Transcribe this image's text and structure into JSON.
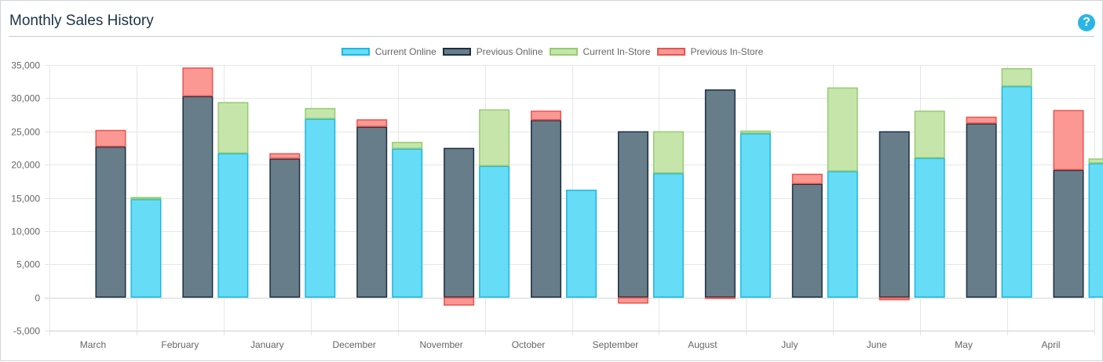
{
  "panel": {
    "title": "Monthly Sales History",
    "help_icon": "question-circle-icon",
    "help_label": "?"
  },
  "chart_data": {
    "type": "bar",
    "stacked": true,
    "categories": [
      "March",
      "February",
      "January",
      "December",
      "November",
      "October",
      "September",
      "August",
      "July",
      "June",
      "May",
      "April"
    ],
    "ylim": [
      -5000,
      35000
    ],
    "yticks": [
      -5000,
      0,
      5000,
      10000,
      15000,
      20000,
      25000,
      30000,
      35000
    ],
    "ytick_labels": [
      "-5,000",
      "0",
      "5,000",
      "10,000",
      "15,000",
      "20,000",
      "25,000",
      "30,000",
      "35,000"
    ],
    "grid": true,
    "legend_position": "top-center",
    "series": [
      {
        "name": "Current Online",
        "stack": "current",
        "fill": "#66dcf7",
        "stroke": "#1eb6e0",
        "values": [
          14800,
          21700,
          26900,
          22400,
          19800,
          16200,
          18700,
          24700,
          19000,
          21000,
          31800,
          20200
        ]
      },
      {
        "name": "Previous Online",
        "stack": "previous",
        "fill": "#687d8a",
        "stroke": "#1b2f40",
        "values": [
          22700,
          30300,
          20900,
          25700,
          22500,
          26700,
          25000,
          31300,
          17100,
          25000,
          26200,
          19200
        ]
      },
      {
        "name": "Current In-Store",
        "stack": "current",
        "fill": "#c6e5ab",
        "stroke": "#94cc6f",
        "values": [
          300,
          7700,
          1600,
          1000,
          8500,
          0,
          6300,
          400,
          12600,
          7100,
          2700,
          700
        ]
      },
      {
        "name": "Previous In-Store",
        "stack": "previous",
        "fill": "#fb9893",
        "stroke": "#e9534f",
        "values": [
          2500,
          4300,
          800,
          1100,
          -1200,
          1400,
          -900,
          -200,
          1500,
          -400,
          1000,
          9000
        ]
      }
    ]
  }
}
